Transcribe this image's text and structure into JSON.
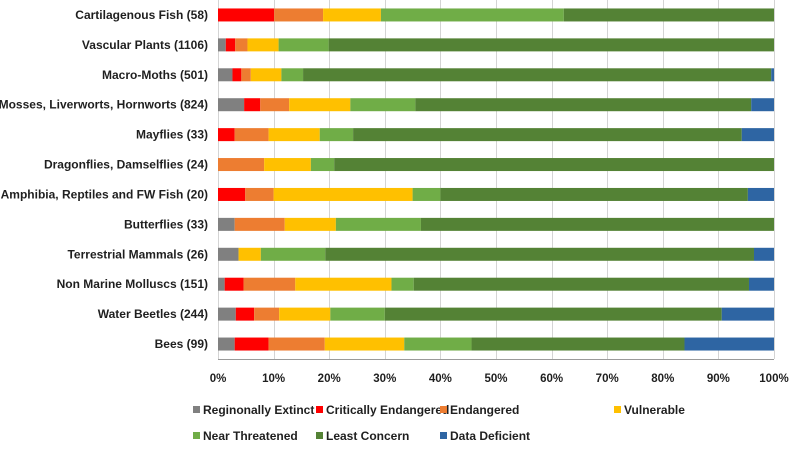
{
  "chart_data": {
    "type": "bar",
    "orientation": "horizontal",
    "stacked": true,
    "title": "",
    "xlabel": "",
    "ylabel": "",
    "xlim": [
      0,
      100
    ],
    "x_ticks": [
      "0%",
      "10%",
      "20%",
      "30%",
      "40%",
      "50%",
      "60%",
      "70%",
      "80%",
      "90%",
      "100%"
    ],
    "grid": true,
    "legend_position": "bottom",
    "categories": [
      "Cartilagenous Fish (58)",
      "Vascular Plants (1106)",
      "Macro-Moths (501)",
      "Mosses, Liverworts, Hornworts (824)",
      "Mayflies (33)",
      "Dragonflies, Damselflies (24)",
      "Amphibia, Reptiles and FW Fish (20)",
      "Butterflies (33)",
      "Terrestrial Mammals (26)",
      "Non Marine Molluscs (151)",
      "Water Beetles (244)",
      "Bees (99)"
    ],
    "series": [
      {
        "name": "Reginonally Extinct",
        "color": "#808080",
        "values": [
          0,
          1.4,
          2.6,
          4.7,
          0,
          0,
          0,
          3.0,
          3.7,
          1.2,
          3.2,
          3.0
        ]
      },
      {
        "name": "Critically Endangered",
        "color": "#ff0000",
        "values": [
          10.1,
          1.7,
          1.6,
          2.9,
          3.0,
          0,
          4.9,
          0,
          0,
          3.4,
          3.3,
          6.1
        ]
      },
      {
        "name": "Endangered",
        "color": "#ed7d31",
        "values": [
          8.8,
          2.2,
          1.7,
          5.2,
          6.1,
          8.3,
          5.1,
          9.0,
          0,
          9.3,
          4.5,
          10.1
        ]
      },
      {
        "name": "Vulnerable",
        "color": "#ffc000",
        "values": [
          10.4,
          5.6,
          5.5,
          11.0,
          9.2,
          8.4,
          25.0,
          9.2,
          4.0,
          17.3,
          9.2,
          14.3
        ]
      },
      {
        "name": "Near Threatened",
        "color": "#70ad47",
        "values": [
          32.9,
          9.0,
          3.9,
          11.7,
          6.0,
          4.2,
          5.0,
          15.3,
          11.6,
          4.0,
          9.8,
          12.1
        ]
      },
      {
        "name": "Least Concern",
        "color": "#548235",
        "values": [
          37.8,
          80.1,
          84.2,
          60.4,
          69.9,
          79.1,
          55.3,
          63.5,
          77.1,
          60.3,
          60.6,
          38.3
        ]
      },
      {
        "name": "Data Deficient",
        "color": "#2e65a3",
        "values": [
          0,
          0,
          0.5,
          4.1,
          5.8,
          0,
          4.7,
          0,
          3.6,
          4.5,
          9.4,
          16.1
        ]
      }
    ]
  }
}
